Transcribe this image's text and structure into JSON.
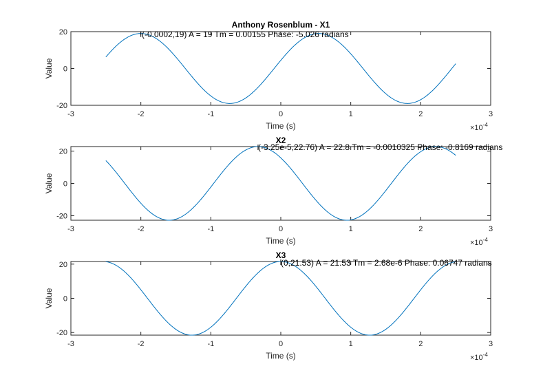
{
  "chart_data": [
    {
      "type": "line",
      "title": "Anthony Rosenblum - X1",
      "xlabel": "Time (s)",
      "ylabel": "Value",
      "xlim": [
        -0.0003,
        0.0003
      ],
      "ylim": [
        -20,
        20
      ],
      "x_tick_labels": [
        "-3",
        "-2",
        "-1",
        "0",
        "1",
        "2",
        "3"
      ],
      "x_exponent_label": "×10",
      "x_exponent_power": "-4",
      "y_tick_labels": [
        "-20",
        "0",
        "20"
      ],
      "y_ticks": [
        -20,
        0,
        20
      ],
      "grid": false,
      "signal": {
        "amplitude": 19,
        "period": 0.000254,
        "time_max": -0.0002
      },
      "x_range": [
        -0.00025,
        0.00025
      ],
      "annotation": "(-0.0002,19) A = 19 Tm = 0.00155 Phase: -5.026 radians",
      "annotation_point": [
        -0.0002,
        19
      ],
      "color": "#0072BD"
    },
    {
      "type": "line",
      "title": "X2",
      "xlabel": "Time (s)",
      "ylabel": "Value",
      "xlim": [
        -0.0003,
        0.0003
      ],
      "ylim": [
        -22.8,
        22.8
      ],
      "x_tick_labels": [
        "-3",
        "-2",
        "-1",
        "0",
        "1",
        "2",
        "3"
      ],
      "x_exponent_label": "×10",
      "x_exponent_power": "-4",
      "y_tick_labels": [
        "-20",
        "0",
        "20"
      ],
      "y_ticks": [
        -20,
        0,
        20
      ],
      "grid": false,
      "signal": {
        "amplitude": 22.8,
        "period": 0.000254,
        "time_max": -3.25e-05
      },
      "x_range": [
        -0.00025,
        0.00025
      ],
      "annotation": "(-3.25e-5,22.76) A = 22.8 Tm = -0.0010325 Phase: -0.8169 radians",
      "annotation_point": [
        -3.25e-05,
        22.76
      ],
      "color": "#0072BD"
    },
    {
      "type": "line",
      "title": "X3",
      "xlabel": "Time (s)",
      "ylabel": "Value",
      "xlim": [
        -0.0003,
        0.0003
      ],
      "ylim": [
        -21.53,
        21.53
      ],
      "x_tick_labels": [
        "-3",
        "-2",
        "-1",
        "0",
        "1",
        "2",
        "3"
      ],
      "x_exponent_label": "×10",
      "x_exponent_power": "-4",
      "y_tick_labels": [
        "-20",
        "0",
        "20"
      ],
      "y_ticks": [
        -20,
        0,
        20
      ],
      "grid": false,
      "signal": {
        "amplitude": 21.53,
        "period": 0.000254,
        "time_max": 0
      },
      "x_range": [
        -0.00025,
        0.00025
      ],
      "annotation": "(0,21.53) A = 21.53 Tm = 2.68e-6 Phase: 0.06747 radians",
      "annotation_point": [
        0,
        21.53
      ],
      "color": "#0072BD"
    }
  ]
}
